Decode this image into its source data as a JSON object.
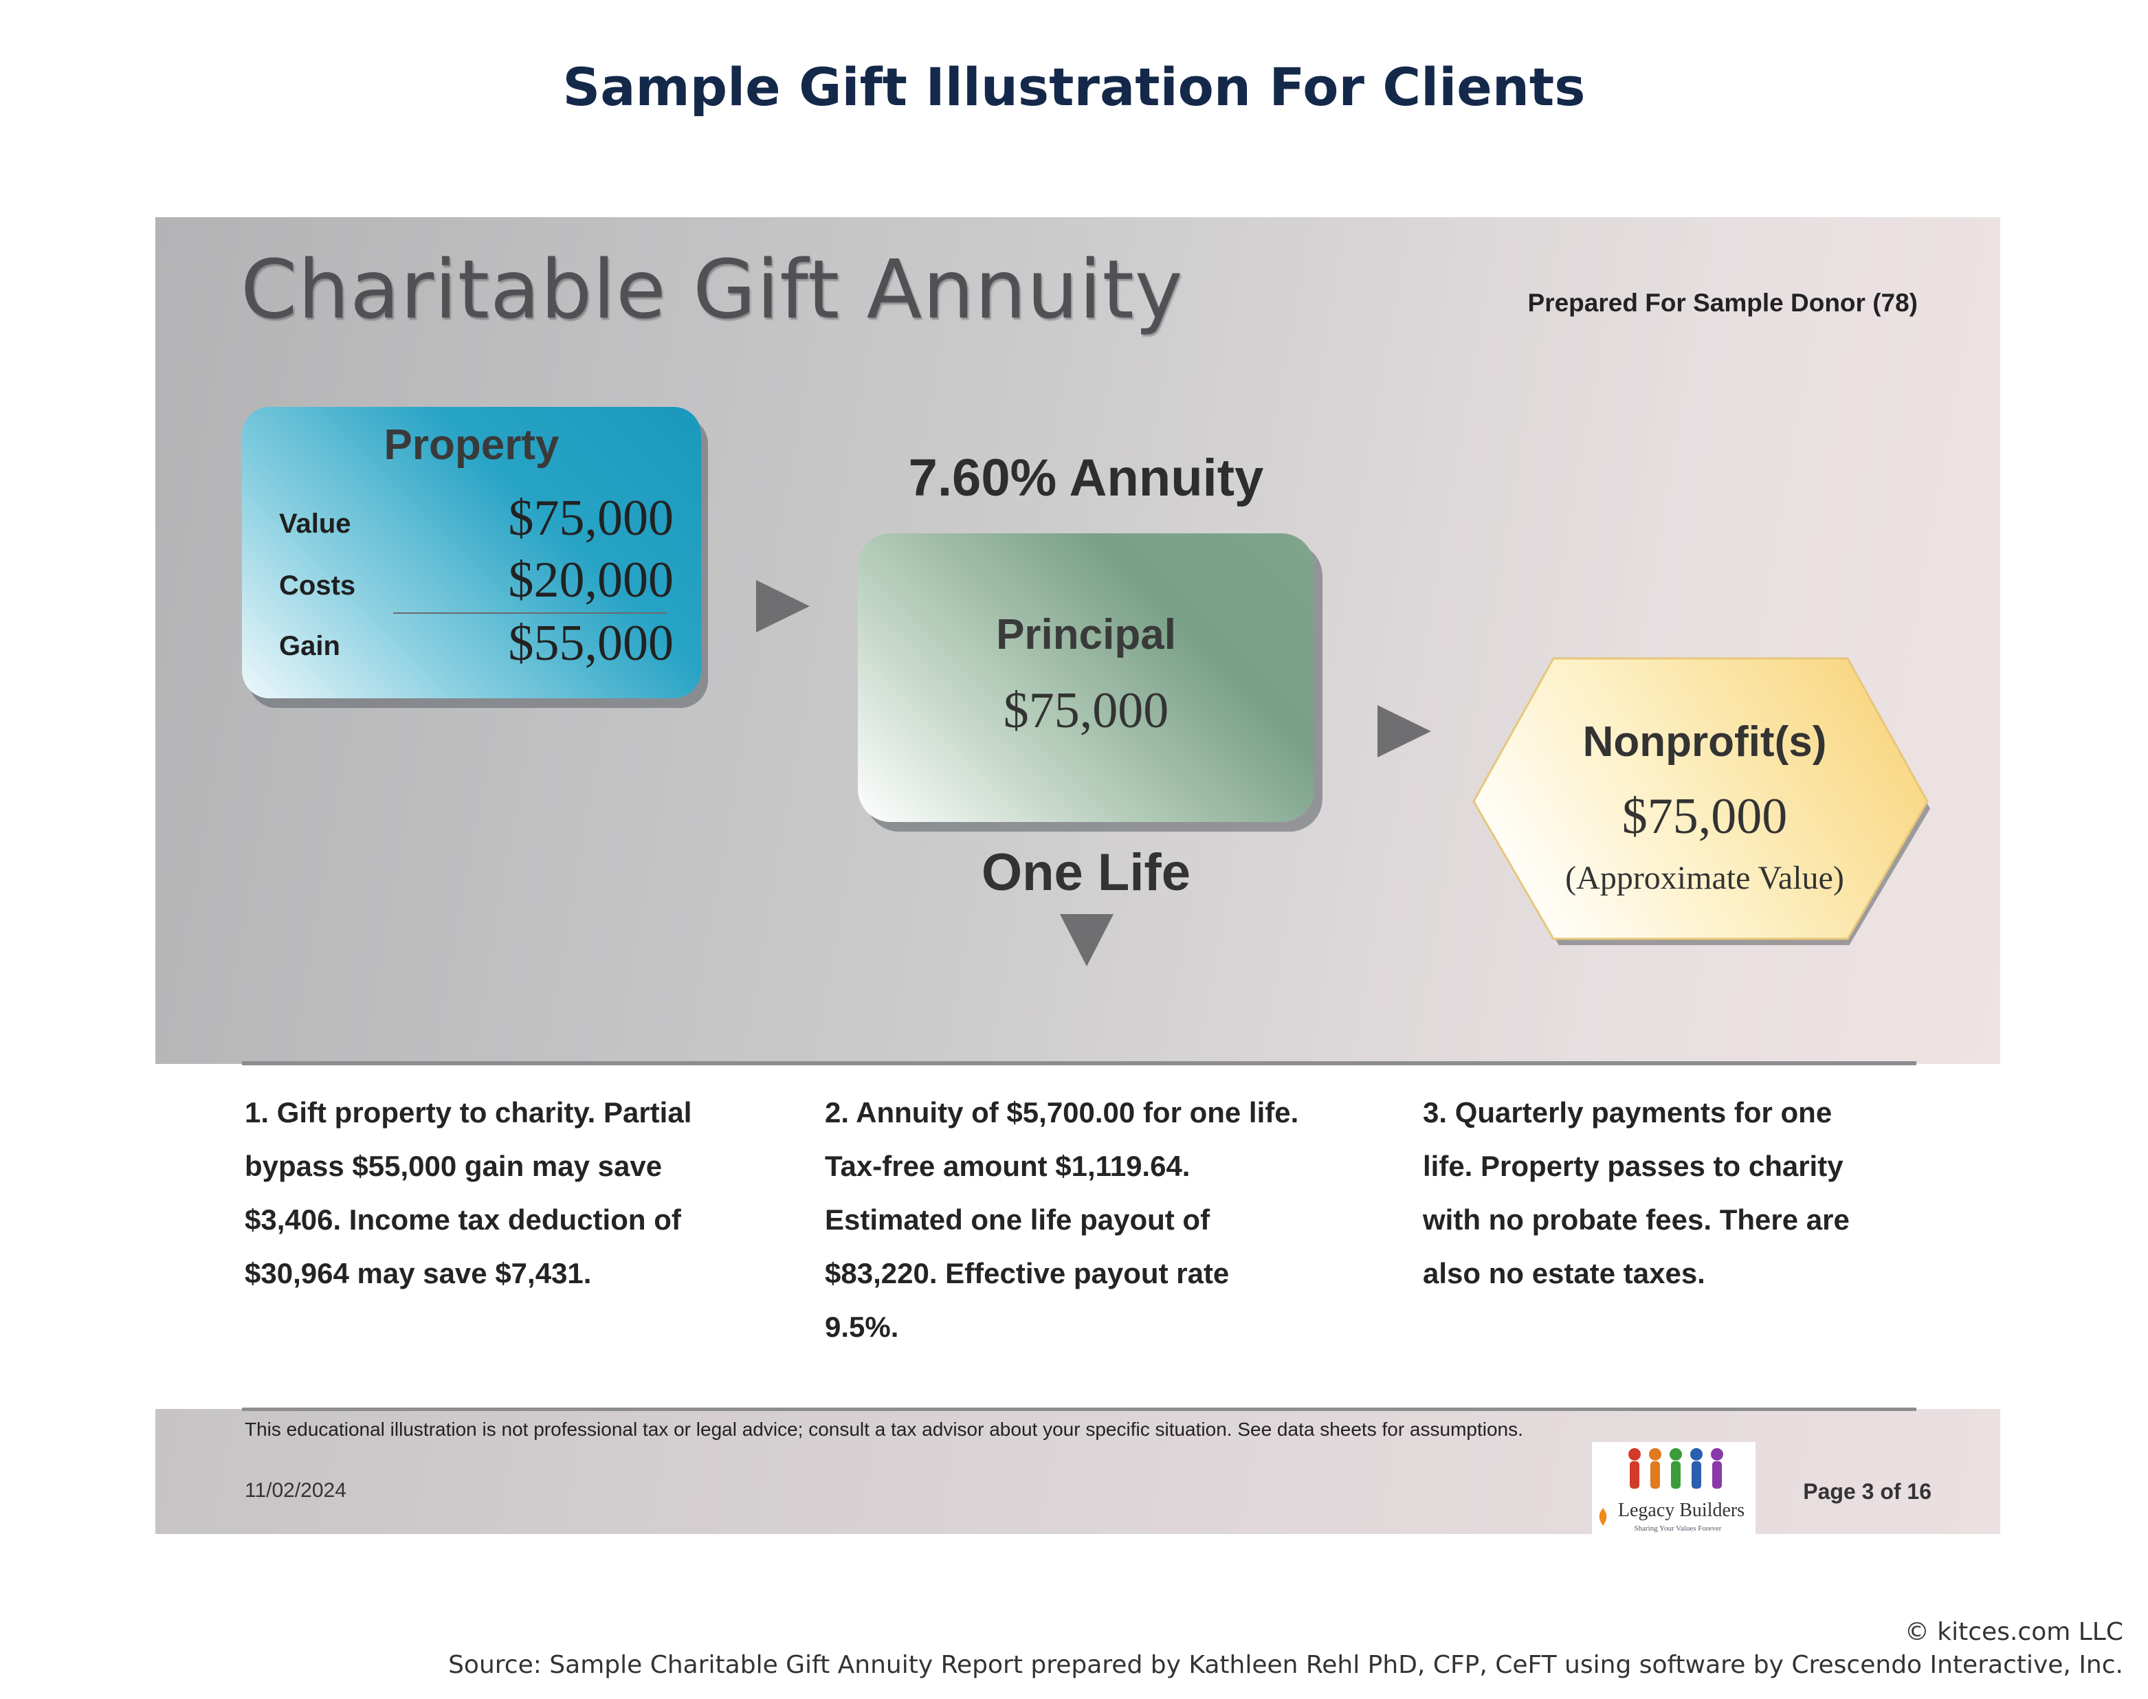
{
  "title": "Sample Gift Illustration For Clients",
  "report": {
    "heading": "Charitable Gift Annuity",
    "prepared_for": "Prepared For Sample Donor (78)"
  },
  "property": {
    "title": "Property",
    "rows": [
      {
        "label": "Value",
        "amount": "$75,000"
      },
      {
        "label": "Costs",
        "amount": "$20,000"
      },
      {
        "label": "Gain",
        "amount": "$55,000"
      }
    ]
  },
  "annuity": {
    "rate_label": "7.60% Annuity",
    "principal_label": "Principal",
    "principal_amount": "$75,000",
    "term_label": "One Life"
  },
  "nonprofit": {
    "label": "Nonprofit(s)",
    "amount": "$75,000",
    "note": "(Approximate Value)"
  },
  "steps": [
    {
      "lines": [
        "1. Gift property to charity. Partial",
        "bypass $55,000 gain may save",
        "$3,406. Income tax deduction of",
        "$30,964 may save $7,431."
      ]
    },
    {
      "lines": [
        "2. Annuity of $5,700.00 for one life.",
        "Tax-free amount $1,119.64.",
        "Estimated one life payout of",
        "$83,220. Effective payout rate",
        "9.5%."
      ]
    },
    {
      "lines": [
        "3. Quarterly payments for one",
        "life. Property passes to charity",
        "with no probate fees. There are",
        "also no estate taxes."
      ]
    }
  ],
  "footer": {
    "disclaimer": "This educational illustration is not professional tax or legal advice; consult a tax advisor about your specific situation. See data sheets for assumptions.",
    "date": "11/02/2024",
    "page": "Page 3 of 16",
    "logo_name": "Legacy Builders",
    "logo_tagline": "Sharing Your Values Forever"
  },
  "copyright": "© kitces.com LLC",
  "source": "Source: Sample Charitable Gift Annuity Report prepared by Kathleen Rehl PhD, CFP, CeFT using software by Crescendo Interactive, Inc.",
  "colors": {
    "title": "#14294a",
    "property_box": "#27a3c5",
    "principal_box": "#7aa088",
    "nonprofit_hex": "#f9dc88",
    "arrows": "#6f6f72"
  }
}
